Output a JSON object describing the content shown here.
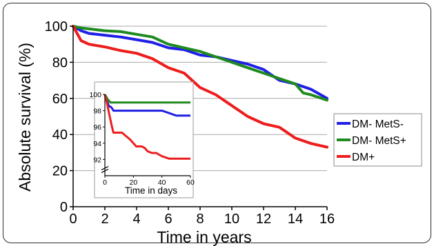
{
  "chart_data": [
    {
      "type": "line",
      "xlabel": "Time in years",
      "ylabel": "Absolute survival (%)",
      "xlim": [
        0,
        16
      ],
      "ylim": [
        0,
        100
      ],
      "xticks": [
        "0",
        "2",
        "4",
        "6",
        "8",
        "10",
        "12",
        "14",
        "16"
      ],
      "yticks": [
        "0",
        "20",
        "40",
        "60",
        "80",
        "100"
      ],
      "grid": "horizontal",
      "legend_position": "right",
      "series": [
        {
          "name": "DM- MetS-",
          "color": "#1f1fe6",
          "x": [
            0,
            0.5,
            1,
            2,
            3,
            4,
            5,
            6,
            7,
            8,
            9,
            10,
            11,
            12,
            13,
            14,
            15,
            16
          ],
          "y": [
            100,
            97.5,
            96,
            95,
            94,
            92.5,
            91,
            88,
            87,
            84,
            83,
            81,
            79,
            76,
            70,
            68,
            65,
            60
          ]
        },
        {
          "name": "DM- MetS+",
          "color": "#1f8a1f",
          "x": [
            0,
            0.5,
            1,
            2,
            3,
            4,
            5,
            6,
            7,
            8,
            9,
            10,
            11,
            12,
            13,
            14,
            14.5,
            15,
            16
          ],
          "y": [
            100,
            99,
            98.5,
            97.5,
            97,
            95.5,
            94,
            90,
            88,
            86,
            83,
            80,
            77,
            74,
            71,
            68,
            63,
            62,
            59
          ]
        },
        {
          "name": "DM+",
          "color": "#ee1c1c",
          "x": [
            0,
            0.5,
            1,
            2,
            3,
            4,
            5,
            6,
            7,
            8,
            9,
            10,
            11,
            12,
            13,
            14,
            15,
            16
          ],
          "y": [
            100,
            92,
            90,
            88.5,
            86.5,
            85,
            82,
            77,
            74,
            66,
            62,
            56,
            50,
            46,
            44,
            38,
            35,
            33
          ]
        }
      ]
    },
    {
      "type": "line",
      "xlabel": "Time in days",
      "ylabel": "",
      "xlim": [
        0,
        60
      ],
      "ylim": [
        90,
        100
      ],
      "xticks": [
        "0",
        "20",
        "40",
        "60"
      ],
      "yticks": [
        "92",
        "94",
        "96",
        "98",
        "100"
      ],
      "axis_break": true,
      "series": [
        {
          "name": "DM- MetS-",
          "color": "#1f1fe6",
          "x": [
            0,
            1,
            2,
            3,
            4,
            5,
            6,
            8,
            12,
            20,
            30,
            40,
            45,
            50,
            60
          ],
          "y": [
            100,
            99.5,
            99,
            98.5,
            98.5,
            98.3,
            98,
            98,
            98,
            98,
            98,
            98,
            97.7,
            97.4,
            97.4
          ]
        },
        {
          "name": "DM- MetS+",
          "color": "#1f8a1f",
          "x": [
            0,
            2,
            4,
            6,
            10,
            20,
            40,
            60
          ],
          "y": [
            100,
            99.4,
            99,
            99,
            99,
            99,
            99,
            99
          ]
        },
        {
          "name": "DM+",
          "color": "#ee1c1c",
          "x": [
            0,
            1,
            2,
            3,
            4,
            5,
            6,
            8,
            10,
            12,
            14,
            16,
            18,
            20,
            22,
            24,
            26,
            28,
            30,
            33,
            36,
            40,
            45,
            50,
            60
          ],
          "y": [
            100,
            99.3,
            98.5,
            97.6,
            96.8,
            96,
            95.3,
            95.3,
            95.3,
            95.3,
            95,
            94.7,
            94.4,
            94,
            93.6,
            93.6,
            93.6,
            93.4,
            93,
            92.8,
            92.8,
            92.4,
            92.1,
            92.1,
            92.1
          ]
        }
      ]
    }
  ],
  "legend": {
    "entries": [
      {
        "label": "DM- MetS-",
        "color": "#1f1fe6"
      },
      {
        "label": "DM- MetS+",
        "color": "#1f8a1f"
      },
      {
        "label": "DM+",
        "color": "#ee1c1c"
      }
    ]
  }
}
